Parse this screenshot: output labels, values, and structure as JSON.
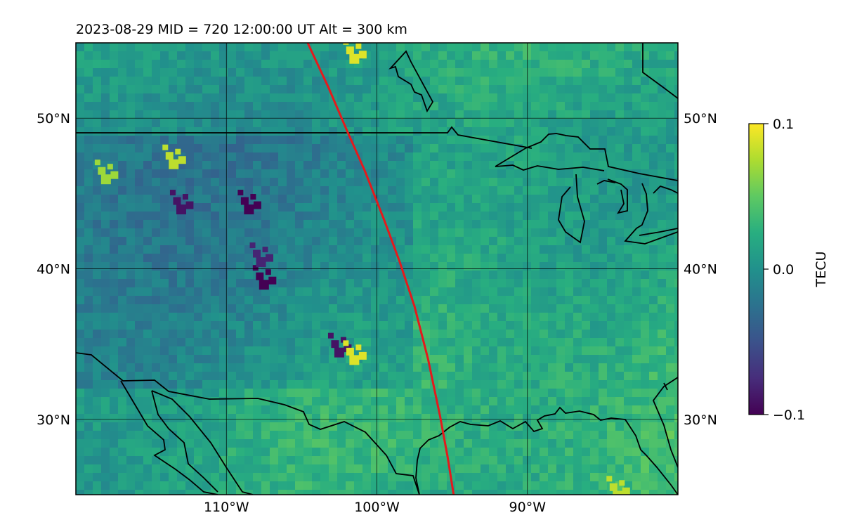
{
  "map": {
    "title": "2023-08-29  MID = 720    12:00:00  UT  Alt = 300 km",
    "lat_range": [
      25,
      55
    ],
    "lon_range": [
      -120,
      -80
    ],
    "lat_labels": [
      {
        "lat": 50,
        "text": "50°N"
      },
      {
        "lat": 40,
        "text": "40°N"
      },
      {
        "lat": 30,
        "text": "30°N"
      }
    ],
    "lon_labels": [
      {
        "lon": -110,
        "text": "110°W"
      },
      {
        "lon": -100,
        "text": "100°W"
      },
      {
        "lon": -90,
        "text": "90°W"
      }
    ],
    "gridlines": true,
    "terminator_color": "#e41a1c",
    "terminator": [
      [
        -104.6,
        55
      ],
      [
        -103.2,
        52
      ],
      [
        -102,
        49.2
      ],
      [
        -100.8,
        46.5
      ],
      [
        -99.5,
        43.2
      ],
      [
        -98.5,
        40.5
      ],
      [
        -97.5,
        37.5
      ],
      [
        -96.6,
        34
      ],
      [
        -95.8,
        30.2
      ],
      [
        -95.3,
        27.5
      ],
      [
        -94.9,
        25
      ]
    ],
    "colormap": "viridis",
    "colorbar": {
      "label": "TECU",
      "min": -0.1,
      "max": 0.1,
      "ticks": [
        {
          "value": 0.1,
          "text": "0.1"
        },
        {
          "value": 0.0,
          "text": "0.0"
        },
        {
          "value": -0.1,
          "text": "−0.1"
        }
      ]
    },
    "anomalies": [
      {
        "lon": -113,
        "lat": 44.5,
        "value": -0.09
      },
      {
        "lon": -108.5,
        "lat": 44.5,
        "value": -0.1
      },
      {
        "lon": -107.5,
        "lat": 39.5,
        "value": -0.1
      },
      {
        "lon": -107.7,
        "lat": 41,
        "value": -0.08
      },
      {
        "lon": -102.5,
        "lat": 35,
        "value": -0.09
      },
      {
        "lon": -101.5,
        "lat": 34.5,
        "value": 0.09
      },
      {
        "lon": -113.5,
        "lat": 47.5,
        "value": 0.08
      },
      {
        "lon": -118,
        "lat": 46.5,
        "value": 0.07
      },
      {
        "lon": -101.5,
        "lat": 54.5,
        "value": 0.09
      },
      {
        "lon": -84,
        "lat": 25.5,
        "value": 0.08
      }
    ]
  }
}
